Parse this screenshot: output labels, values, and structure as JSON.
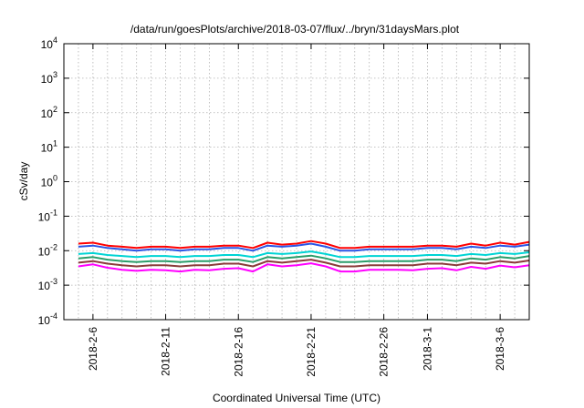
{
  "chart_data": {
    "type": "line",
    "title": "/data/run/goesPlots/archive/2018-03-07/flux/../bryn/31daysMars.plot",
    "xlabel": "Coordinated Universal Time (UTC)",
    "ylabel": "cSv/day",
    "y_scale": "log",
    "ylim": [
      0.0001,
      10000
    ],
    "y_ticks": [
      {
        "value": 0.0001,
        "base": "10",
        "exp": "-4"
      },
      {
        "value": 0.001,
        "base": "10",
        "exp": "-3"
      },
      {
        "value": 0.01,
        "base": "10",
        "exp": "-2"
      },
      {
        "value": 0.1,
        "base": "10",
        "exp": "-1"
      },
      {
        "value": 1,
        "base": "10",
        "exp": "0"
      },
      {
        "value": 10,
        "base": "10",
        "exp": "1"
      },
      {
        "value": 100,
        "base": "10",
        "exp": "2"
      },
      {
        "value": 1000,
        "base": "10",
        "exp": "3"
      },
      {
        "value": 10000,
        "base": "10",
        "exp": "4"
      }
    ],
    "xlim": [
      "2018-02-04",
      "2018-03-08"
    ],
    "x_ticks": [
      "2018-2-6",
      "2018-2-11",
      "2018-2-16",
      "2018-2-21",
      "2018-2-26",
      "2018-3-1",
      "2018-3-6"
    ],
    "x_tick_dates": [
      "2018-02-06",
      "2018-02-11",
      "2018-02-16",
      "2018-02-21",
      "2018-02-26",
      "2018-03-01",
      "2018-03-06"
    ],
    "grid": true,
    "x": [
      "2018-02-05",
      "2018-02-06",
      "2018-02-07",
      "2018-02-08",
      "2018-02-09",
      "2018-02-10",
      "2018-02-11",
      "2018-02-12",
      "2018-02-13",
      "2018-02-14",
      "2018-02-15",
      "2018-02-16",
      "2018-02-17",
      "2018-02-18",
      "2018-02-19",
      "2018-02-20",
      "2018-02-21",
      "2018-02-22",
      "2018-02-23",
      "2018-02-24",
      "2018-02-25",
      "2018-02-26",
      "2018-02-27",
      "2018-02-28",
      "2018-03-01",
      "2018-03-02",
      "2018-03-03",
      "2018-03-04",
      "2018-03-05",
      "2018-03-06",
      "2018-03-07",
      "2018-03-08"
    ],
    "series": [
      {
        "color": "#ff0000",
        "values": [
          0.016,
          0.017,
          0.014,
          0.013,
          0.012,
          0.013,
          0.013,
          0.012,
          0.013,
          0.013,
          0.014,
          0.014,
          0.012,
          0.017,
          0.015,
          0.016,
          0.019,
          0.016,
          0.012,
          0.012,
          0.013,
          0.013,
          0.013,
          0.013,
          0.014,
          0.014,
          0.013,
          0.016,
          0.014,
          0.017,
          0.015,
          0.018
        ]
      },
      {
        "color": "#2b55e6",
        "values": [
          0.013,
          0.014,
          0.012,
          0.011,
          0.01,
          0.011,
          0.011,
          0.01,
          0.011,
          0.011,
          0.012,
          0.012,
          0.01,
          0.014,
          0.013,
          0.014,
          0.016,
          0.013,
          0.01,
          0.01,
          0.011,
          0.011,
          0.011,
          0.011,
          0.012,
          0.012,
          0.011,
          0.013,
          0.012,
          0.014,
          0.013,
          0.015
        ]
      },
      {
        "color": "#00d4d4",
        "values": [
          0.008,
          0.0085,
          0.0075,
          0.007,
          0.0065,
          0.007,
          0.007,
          0.0065,
          0.007,
          0.007,
          0.0075,
          0.0075,
          0.0065,
          0.0085,
          0.008,
          0.0085,
          0.0095,
          0.008,
          0.0065,
          0.0065,
          0.007,
          0.007,
          0.007,
          0.007,
          0.0075,
          0.0075,
          0.007,
          0.008,
          0.0075,
          0.0085,
          0.008,
          0.009
        ]
      },
      {
        "color": "#2a9d6a",
        "values": [
          0.006,
          0.0065,
          0.0055,
          0.005,
          0.0047,
          0.005,
          0.005,
          0.0047,
          0.005,
          0.005,
          0.0055,
          0.0055,
          0.0047,
          0.0065,
          0.006,
          0.0065,
          0.0072,
          0.006,
          0.0047,
          0.0047,
          0.005,
          0.005,
          0.005,
          0.005,
          0.0055,
          0.0055,
          0.005,
          0.006,
          0.0055,
          0.0065,
          0.006,
          0.007
        ]
      },
      {
        "color": "#8b3a3a",
        "values": [
          0.0045,
          0.005,
          0.0042,
          0.0038,
          0.0035,
          0.0038,
          0.0038,
          0.0035,
          0.0038,
          0.0038,
          0.0042,
          0.0042,
          0.0035,
          0.005,
          0.0045,
          0.005,
          0.0055,
          0.0045,
          0.0035,
          0.0035,
          0.0038,
          0.0038,
          0.0038,
          0.0038,
          0.0042,
          0.0042,
          0.0038,
          0.0045,
          0.0042,
          0.005,
          0.0045,
          0.0052
        ]
      },
      {
        "color": "#ff00ff",
        "values": [
          0.0035,
          0.004,
          0.0032,
          0.0028,
          0.0026,
          0.0028,
          0.0027,
          0.0025,
          0.0028,
          0.0027,
          0.003,
          0.0031,
          0.0025,
          0.004,
          0.0035,
          0.0038,
          0.0043,
          0.0035,
          0.0025,
          0.0025,
          0.0028,
          0.0028,
          0.0028,
          0.0027,
          0.003,
          0.0031,
          0.0027,
          0.0034,
          0.003,
          0.0037,
          0.0033,
          0.0038
        ]
      }
    ]
  }
}
